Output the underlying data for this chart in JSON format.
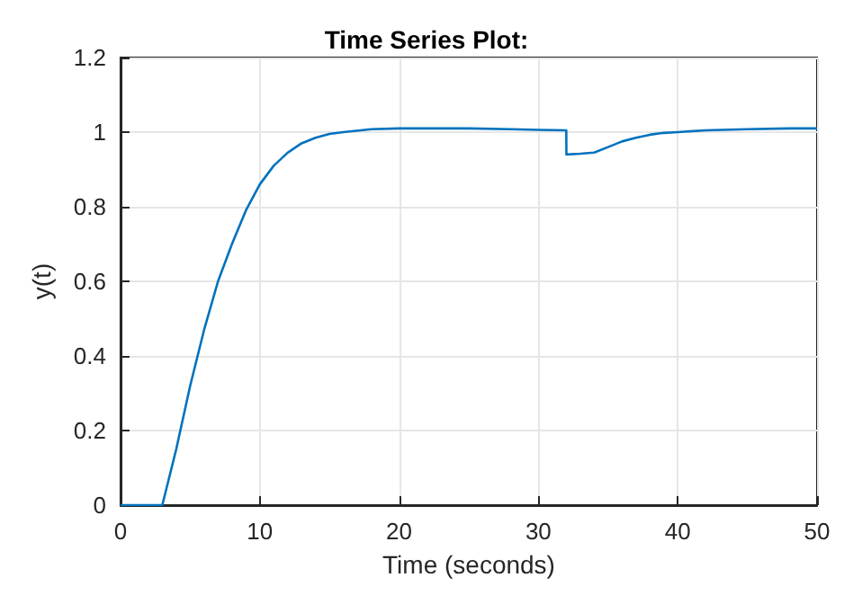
{
  "chart_data": {
    "type": "line",
    "title": "Time Series Plot:",
    "xlabel": "Time (seconds)",
    "ylabel": "y(t)",
    "x": [
      0,
      3,
      4,
      5,
      6,
      7,
      8,
      9,
      10,
      11,
      12,
      13,
      14,
      15,
      16,
      18,
      20,
      22,
      25,
      28,
      30,
      32,
      32.01,
      33,
      34,
      35,
      36,
      37,
      38,
      39,
      40,
      42,
      45,
      48,
      50
    ],
    "series": [
      {
        "color": "#0072bd",
        "values": [
          0,
          0,
          0.15,
          0.32,
          0.47,
          0.6,
          0.7,
          0.79,
          0.86,
          0.91,
          0.945,
          0.97,
          0.985,
          0.995,
          1.0,
          1.008,
          1.01,
          1.01,
          1.01,
          1.008,
          1.006,
          1.005,
          0.94,
          0.942,
          0.945,
          0.96,
          0.975,
          0.985,
          0.993,
          0.998,
          1.0,
          1.005,
          1.008,
          1.01,
          1.01
        ]
      }
    ],
    "xlim": [
      0,
      50
    ],
    "xticks": [
      0,
      10,
      20,
      30,
      40,
      50
    ],
    "ylim": [
      0,
      1.2
    ],
    "yticks": [
      0,
      0.2,
      0.4,
      0.6,
      0.8,
      1,
      1.2
    ],
    "grid": true,
    "marker": "none",
    "line_style": "solid"
  }
}
